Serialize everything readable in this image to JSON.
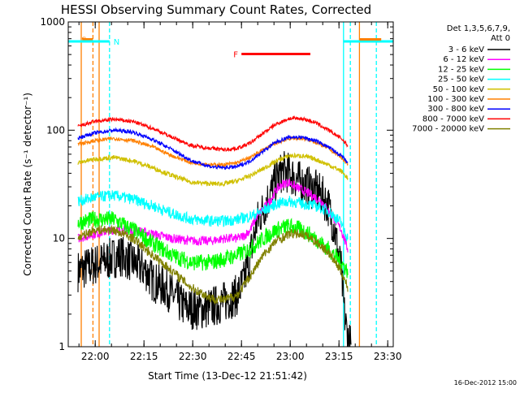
{
  "chart_data": {
    "type": "line",
    "title": "HESSI Observing Summary Count Rates, Corrected",
    "xlabel": "Start Time (13-Dec-12 21:51:42)",
    "ylabel": "Corrected Count Rate (s⁻¹ detector⁻¹)",
    "y_scale": "log",
    "ylim": [
      1,
      1000
    ],
    "xlim_minutes_after_start": [
      0,
      100
    ],
    "x_tick_labels": [
      "22:00",
      "22:15",
      "22:30",
      "22:45",
      "23:00",
      "23:15",
      "23:30"
    ],
    "x_tick_minutes": [
      8.3,
      23.3,
      38.3,
      53.3,
      68.3,
      83.3,
      98.3
    ],
    "y_tick_labels": [
      "1",
      "10",
      "100",
      "1000"
    ],
    "y_tick_values": [
      1,
      10,
      100,
      1000
    ],
    "legend_header": [
      "Det 1,3,5,6,7,9,",
      "Att 0"
    ],
    "legend_placement": "right-outside",
    "series": [
      {
        "name": "3 - 6 keV",
        "color": "#000000",
        "noise": 0.45,
        "x": [
          3,
          10,
          16,
          20,
          24,
          26,
          30,
          34,
          36,
          40,
          44,
          48,
          52,
          54,
          56,
          58,
          62,
          64,
          66,
          68,
          70,
          72,
          74,
          76,
          78,
          80,
          82,
          84,
          85,
          86,
          87
        ],
        "y": [
          5,
          6,
          7,
          6,
          5,
          4,
          3.5,
          2.6,
          2.3,
          2.2,
          2.3,
          2.6,
          3,
          4,
          7,
          14,
          25,
          35,
          42,
          40,
          36,
          32,
          30,
          28,
          25,
          20,
          12,
          5,
          2,
          1.2,
          1
        ]
      },
      {
        "name": "6 - 12 keV",
        "color": "#ff00ff",
        "noise": 0.1,
        "x": [
          3,
          8,
          14,
          20,
          26,
          32,
          38,
          44,
          48,
          52,
          54,
          56,
          58,
          62,
          64,
          66,
          68,
          70,
          72,
          74,
          76,
          78,
          80,
          82,
          84,
          86
        ],
        "y": [
          10,
          11,
          12,
          12,
          11,
          10,
          9.5,
          9.5,
          10,
          10,
          10.5,
          12,
          16,
          22,
          28,
          32,
          33,
          30,
          28,
          26,
          24,
          22,
          18,
          15,
          12,
          8
        ]
      },
      {
        "name": "12 - 25 keV",
        "color": "#00ff00",
        "noise": 0.18,
        "x": [
          3,
          8,
          14,
          20,
          26,
          32,
          38,
          44,
          48,
          52,
          56,
          60,
          64,
          68,
          72,
          76,
          80,
          84,
          86
        ],
        "y": [
          14,
          15,
          15,
          12,
          9,
          7,
          6,
          6,
          6.5,
          7,
          8,
          10,
          12,
          13,
          12,
          10,
          8,
          6,
          5
        ]
      },
      {
        "name": "25 - 50 keV",
        "color": "#00ffff",
        "noise": 0.12,
        "x": [
          3,
          8,
          14,
          20,
          26,
          32,
          38,
          44,
          48,
          52,
          56,
          60,
          64,
          68,
          72,
          76,
          80,
          84,
          86
        ],
        "y": [
          22,
          24,
          25,
          23,
          20,
          17,
          15,
          14.5,
          14.5,
          15,
          16,
          18,
          21,
          22,
          21,
          20,
          18,
          14,
          10
        ]
      },
      {
        "name": "50 - 100 keV",
        "color": "#d0c000",
        "noise": 0.05,
        "x": [
          3,
          8,
          14,
          20,
          26,
          32,
          38,
          44,
          48,
          52,
          56,
          60,
          64,
          68,
          72,
          76,
          80,
          84,
          86
        ],
        "y": [
          50,
          54,
          56,
          52,
          45,
          38,
          33,
          32,
          32,
          34,
          38,
          44,
          52,
          58,
          58,
          54,
          48,
          42,
          36
        ]
      },
      {
        "name": "100 - 300 keV",
        "color": "#ff8000",
        "noise": 0.04,
        "x": [
          3,
          8,
          14,
          20,
          26,
          32,
          38,
          44,
          48,
          52,
          56,
          60,
          64,
          68,
          72,
          76,
          80,
          84,
          86
        ],
        "y": [
          74,
          80,
          84,
          80,
          70,
          58,
          50,
          48,
          48,
          50,
          56,
          66,
          76,
          84,
          84,
          78,
          68,
          56,
          48
        ]
      },
      {
        "name": "300 - 800 keV",
        "color": "#0000ff",
        "noise": 0.04,
        "x": [
          3,
          8,
          14,
          20,
          26,
          32,
          38,
          44,
          48,
          52,
          56,
          60,
          64,
          68,
          72,
          76,
          80,
          84,
          86
        ],
        "y": [
          85,
          94,
          100,
          96,
          82,
          66,
          52,
          46,
          45,
          46,
          52,
          64,
          78,
          86,
          86,
          80,
          70,
          58,
          50
        ]
      },
      {
        "name": "800 - 7000 keV",
        "color": "#ff0000",
        "noise": 0.04,
        "x": [
          3,
          8,
          14,
          20,
          26,
          32,
          38,
          44,
          48,
          52,
          56,
          60,
          64,
          68,
          72,
          76,
          80,
          84,
          86
        ],
        "y": [
          108,
          120,
          126,
          120,
          104,
          86,
          72,
          68,
          66,
          68,
          76,
          94,
          114,
          128,
          128,
          118,
          100,
          84,
          72
        ]
      },
      {
        "name": "7000 - 20000 keV",
        "color": "#808000",
        "noise": 0.1,
        "x": [
          3,
          8,
          14,
          20,
          26,
          32,
          38,
          44,
          48,
          52,
          56,
          60,
          64,
          68,
          72,
          76,
          80,
          84,
          86
        ],
        "y": [
          10,
          12,
          12,
          10,
          7,
          5,
          3.5,
          2.8,
          2.7,
          3,
          4.5,
          7,
          9.5,
          11,
          11,
          9.5,
          7.5,
          5,
          3.5
        ]
      }
    ],
    "flag_lines": [
      {
        "label": "S",
        "color": "#ff8000",
        "x": 4,
        "style": "solid"
      },
      {
        "label": "",
        "color": "#ff8000",
        "x": 7.6,
        "style": "dashed"
      },
      {
        "label": "",
        "color": "#ff8000",
        "x": 9.5,
        "style": "solid"
      },
      {
        "label": "N",
        "color": "#00ffff",
        "x": 12.7,
        "style": "dashed"
      },
      {
        "label": "",
        "color": "#00ffff",
        "x": 84.7,
        "style": "solid"
      },
      {
        "label": "",
        "color": "#00ffff",
        "x": 86.8,
        "style": "dashed"
      },
      {
        "label": "",
        "color": "#ff8000",
        "x": 89.6,
        "style": "solid"
      },
      {
        "label": "",
        "color": "#00ffff",
        "x": 94.8,
        "style": "dashed"
      }
    ],
    "flag_bars": [
      {
        "label": "S",
        "color": "#ff8000",
        "x": [
          4.3,
          7.6
        ],
        "y": 690
      },
      {
        "label": "N",
        "color": "#00ffff",
        "x": [
          0,
          12.7
        ],
        "y": 660
      },
      {
        "label": "F",
        "color": "#ff0000",
        "x": [
          53.3,
          74.5
        ],
        "y": 505
      },
      {
        "label": "",
        "color": "#00ffff",
        "x": [
          84.7,
          100
        ],
        "y": 660
      },
      {
        "label": "",
        "color": "#ff8000",
        "x": [
          89.6,
          96.3
        ],
        "y": 690
      }
    ],
    "timestamp": "16-Dec-2012 15:00"
  }
}
